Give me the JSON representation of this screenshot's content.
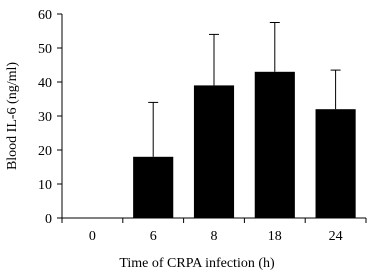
{
  "chart_data": {
    "type": "bar",
    "x_label": "Time of CRPA infection (h)",
    "y_label": "Blood IL-6 (ng/ml)",
    "categories": [
      "0",
      "6",
      "8",
      "18",
      "24"
    ],
    "values": [
      0,
      18,
      39,
      43,
      32
    ],
    "errors": [
      null,
      16,
      15,
      14.5,
      11.5
    ],
    "color": "#000000",
    "ylim": [
      0,
      60
    ],
    "yticks": [
      0,
      10,
      20,
      30,
      40,
      50,
      60
    ],
    "grid": false
  }
}
